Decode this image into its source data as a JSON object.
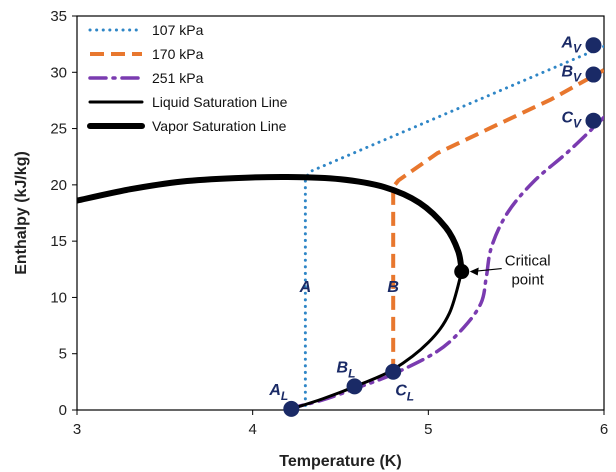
{
  "chart_data": {
    "type": "line",
    "xlabel": "Temperature (K)",
    "ylabel": "Enthalpy (kJ/kg)",
    "xlim": [
      3,
      6
    ],
    "ylim": [
      0,
      35
    ],
    "x_ticks": [
      "3",
      "4",
      "5",
      "6"
    ],
    "y_ticks": [
      "0",
      "5",
      "10",
      "15",
      "20",
      "25",
      "30",
      "35"
    ],
    "grid": false,
    "legend_position": "top-left",
    "series": [
      {
        "name": "107 kPa",
        "color": "#2f86c6",
        "style": "dotted",
        "x": [
          4.3,
          4.3,
          4.33,
          6.0
        ],
        "y": [
          0.4,
          20.6,
          21.2,
          32.3
        ]
      },
      {
        "name": "170 kPa",
        "color": "#e8772e",
        "style": "dashed",
        "x": [
          4.8,
          4.8,
          4.83,
          5.05,
          5.4,
          5.7,
          6.0
        ],
        "y": [
          3.3,
          19.8,
          20.4,
          22.8,
          25.4,
          27.6,
          30.2
        ]
      },
      {
        "name": "251 kPa",
        "color": "#7a3bb0",
        "style": "dashdot",
        "x": [
          4.2,
          4.4,
          4.6,
          4.8,
          5.05,
          5.2,
          5.3,
          5.33,
          5.36,
          5.45,
          5.6,
          5.8,
          6.0
        ],
        "y": [
          0.1,
          0.9,
          2.0,
          3.2,
          5.2,
          7.3,
          9.5,
          11.8,
          14.5,
          17.5,
          20.3,
          23.0,
          26.0
        ]
      },
      {
        "name": "Liquid Saturation Line",
        "color": "#000000",
        "style": "solid-thin",
        "x": [
          4.22,
          4.4,
          4.6,
          4.8,
          5.0,
          5.12,
          5.19
        ],
        "y": [
          0.1,
          1.0,
          2.2,
          3.6,
          6.0,
          8.6,
          12.3
        ]
      },
      {
        "name": "Vapor Saturation Line",
        "color": "#000000",
        "style": "solid-thick",
        "x": [
          3.0,
          3.3,
          3.6,
          3.9,
          4.2,
          4.5,
          4.75,
          4.95,
          5.1,
          5.17,
          5.19
        ],
        "y": [
          18.6,
          19.6,
          20.3,
          20.6,
          20.7,
          20.5,
          19.8,
          18.4,
          16.2,
          14.1,
          12.3
        ]
      }
    ],
    "markers": [
      {
        "label": "A",
        "sub": "L",
        "x": 4.22,
        "y": 0.1,
        "color": "#1a2a66"
      },
      {
        "label": "B",
        "sub": "L",
        "x": 4.58,
        "y": 2.1,
        "color": "#1a2a66"
      },
      {
        "label": "C",
        "sub": "L",
        "x": 4.8,
        "y": 3.4,
        "color": "#1a2a66"
      },
      {
        "label": "A",
        "sub": "V",
        "x": 5.94,
        "y": 32.4,
        "color": "#1a2a66"
      },
      {
        "label": "B",
        "sub": "V",
        "x": 5.94,
        "y": 29.8,
        "color": "#1a2a66"
      },
      {
        "label": "C",
        "sub": "V",
        "x": 5.94,
        "y": 25.7,
        "color": "#1a2a66"
      },
      {
        "label": "",
        "sub": "",
        "x": 5.19,
        "y": 12.3,
        "color": "#000000"
      }
    ],
    "annotations": [
      {
        "text": "A",
        "x": 4.3,
        "y": 10.5
      },
      {
        "text": "B",
        "x": 4.8,
        "y": 10.5
      }
    ],
    "critical_point": {
      "line1": "Critical",
      "line2": "point",
      "x": 5.19,
      "y": 12.3
    }
  }
}
